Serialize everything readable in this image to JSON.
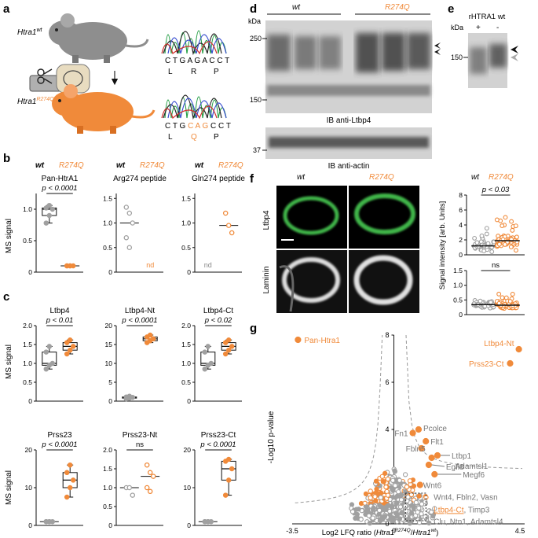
{
  "colors": {
    "orange": "#f08a3a",
    "gray": "#a0a0a0",
    "black": "#111111",
    "green": "#3fb54a"
  },
  "panels": {
    "a": "a",
    "b": "b",
    "c": "c",
    "d": "d",
    "e": "e",
    "f": "f",
    "g": "g"
  },
  "a": {
    "mouse_wt": "Htra1",
    "mouse_wt_sup": "wt",
    "mouse_mut": "Htra1",
    "mouse_mut_sup": "R274Q",
    "seq_wt": "C T G A G A C C T",
    "aa_wt": [
      "L",
      "R",
      "P"
    ],
    "seq_mut_pre": "C T G ",
    "seq_mut_hi": "C A G",
    "seq_mut_post": " C C T",
    "aa_mut": [
      "L",
      "Q",
      "P"
    ]
  },
  "legend": {
    "wt": "wt",
    "mut": "R274Q"
  },
  "b": {
    "ylabel": "MS signal",
    "plots": [
      {
        "title": "Pan-HtrA1",
        "p": "p < 0.0001",
        "ticks": [
          "1.0",
          "0.5",
          "0"
        ]
      },
      {
        "title": "Arg274 peptide",
        "note": "nd",
        "ticks": [
          "1.5",
          "1.0",
          "0.5",
          "0"
        ]
      },
      {
        "title": "Gln274 peptide",
        "note": "nd",
        "ticks": [
          "1.5",
          "1.0",
          "0.5",
          "0"
        ]
      }
    ]
  },
  "c": {
    "ylabel": "MS signal",
    "plots": [
      {
        "title": "Ltbp4",
        "p": "p < 0.01",
        "ticks": [
          "2.0",
          "1.5",
          "1.0",
          "0.5",
          "0"
        ]
      },
      {
        "title": "Ltbp4-Nt",
        "p": "p < 0.0001",
        "ticks": [
          "20",
          "15",
          "10",
          "5",
          "0"
        ]
      },
      {
        "title": "Ltbp4-Ct",
        "p": "p < 0.02",
        "ticks": [
          "2.0",
          "1.5",
          "1.0",
          "0.5",
          "0"
        ]
      },
      {
        "title": "Prss23",
        "p": "p < 0.0001",
        "ticks": [
          "20",
          "10",
          "0"
        ]
      },
      {
        "title": "Prss23-Nt",
        "p": "ns",
        "ticks": [
          "2.0",
          "1.5",
          "1.0",
          "0.5",
          "0"
        ]
      },
      {
        "title": "Prss23-Ct",
        "p": "p < 0.0001",
        "ticks": [
          "20",
          "10",
          "0"
        ]
      }
    ]
  },
  "d": {
    "kda": "kDa",
    "m250": "250",
    "m150": "150",
    "m37": "37",
    "blot1": "IB anti-Ltbp4",
    "blot2": "IB anti-actin"
  },
  "e": {
    "title": "rHTRA1 wt",
    "kda": "kDa",
    "plus": "+",
    "minus": "-",
    "m150": "150"
  },
  "f": {
    "row1": "Ltbp4",
    "row2": "Laminin",
    "p": "p < 0.03",
    "ns": "ns",
    "ylabel": "Signal intensity [arb. Units]",
    "ticks_top": [
      "8",
      "6",
      "4",
      "2",
      "0"
    ],
    "ticks_bot": [
      "1.5",
      "1.0",
      "0.5",
      "0"
    ]
  },
  "g": {
    "ylabel": "-Log10 p-value",
    "xlabel_pre": "Log2 LFQ ratio (",
    "xlabel_num": "Htra1",
    "xlabel_num_sup": "R274Q",
    "xlabel_sep": "/",
    "xlabel_den": "Htra1",
    "xlabel_den_sup": "wt",
    "xlabel_post": ")",
    "xmin": "-3.5",
    "xzero": "0",
    "xmax": "4.5",
    "yticks": [
      "8",
      "6",
      "4",
      "2",
      "0"
    ],
    "labels": {
      "pan": "Pan-Htra1",
      "ltbp4nt": "Ltbp4-Nt",
      "prss23ct": "Prss23-Ct",
      "pcolce": "Pcolce",
      "fn1": "Fn1",
      "flt1": "Flt1",
      "fbln5": "Fbln5",
      "ltbp1": "Ltbp1",
      "adamtsl1": "Adamtsl1",
      "egfl8": "Egfl8",
      "megf6": "Megf6",
      "wnt6": "Wnt6",
      "wnt4": "Wnt4, Fbln2, Vasn",
      "ltbp4ct": "Ltbp4-Ct",
      "timp3": ", Timp3",
      "clu": "Clu, Ntn1, Adamtsl4"
    }
  },
  "chart_data": [
    {
      "type": "box",
      "title": "Pan-HtrA1",
      "ylabel": "MS signal",
      "series": [
        {
          "name": "wt",
          "values": [
            0.78,
            0.9,
            1.0,
            1.02,
            1.06
          ]
        },
        {
          "name": "R274Q",
          "values": [
            0.1,
            0.1,
            0.1,
            0.1,
            0.1
          ]
        }
      ],
      "ylim": [
        0,
        1.25
      ]
    },
    {
      "type": "scatter",
      "title": "Arg274 peptide",
      "series": [
        {
          "name": "wt",
          "values": [
            1.32,
            1.2,
            1.0,
            0.7,
            0.5
          ]
        }
      ],
      "ylim": [
        0,
        1.6
      ]
    },
    {
      "type": "scatter",
      "title": "Gln274 peptide",
      "series": [
        {
          "name": "R274Q",
          "values": [
            1.2,
            0.95,
            0.8
          ]
        }
      ],
      "ylim": [
        0,
        1.6
      ]
    },
    {
      "type": "box",
      "title": "Ltbp4",
      "series": [
        {
          "name": "wt",
          "values": [
            0.85,
            0.95,
            1.0,
            1.3,
            1.45
          ]
        },
        {
          "name": "R274Q",
          "values": [
            1.25,
            1.35,
            1.45,
            1.55,
            1.62
          ]
        }
      ],
      "ylim": [
        0,
        2
      ]
    },
    {
      "type": "box",
      "title": "Ltbp4-Nt",
      "series": [
        {
          "name": "wt",
          "values": [
            0.6,
            0.8,
            1.0,
            1.1,
            1.3
          ]
        },
        {
          "name": "R274Q",
          "values": [
            15.5,
            16.0,
            16.5,
            17.0,
            17.5
          ]
        }
      ],
      "ylim": [
        0,
        20
      ]
    },
    {
      "type": "box",
      "title": "Ltbp4-Ct",
      "series": [
        {
          "name": "wt",
          "values": [
            0.85,
            0.95,
            1.0,
            1.3,
            1.45
          ]
        },
        {
          "name": "R274Q",
          "values": [
            1.25,
            1.35,
            1.45,
            1.55,
            1.62
          ]
        }
      ],
      "ylim": [
        0,
        2
      ]
    },
    {
      "type": "box",
      "title": "Prss23",
      "series": [
        {
          "name": "wt",
          "values": [
            1,
            1,
            1,
            1,
            1
          ]
        },
        {
          "name": "R274Q",
          "values": [
            7.5,
            10,
            12,
            14,
            16
          ]
        }
      ],
      "ylim": [
        0,
        20
      ]
    },
    {
      "type": "scatter",
      "title": "Prss23-Nt",
      "series": [
        {
          "name": "wt",
          "values": [
            1.0,
            1.0,
            0.8
          ]
        },
        {
          "name": "R274Q",
          "values": [
            1.6,
            1.4,
            1.3,
            1.0,
            0.9
          ]
        }
      ],
      "ylim": [
        0,
        2
      ]
    },
    {
      "type": "box",
      "title": "Prss23-Ct",
      "series": [
        {
          "name": "wt",
          "values": [
            1,
            1,
            1,
            1,
            1
          ]
        },
        {
          "name": "R274Q",
          "values": [
            8,
            12,
            15,
            17,
            17.5
          ]
        }
      ],
      "ylim": [
        0,
        20
      ]
    },
    {
      "type": "scatter",
      "title": "Volcano plot",
      "xlabel": "Log2 LFQ ratio (Htra1 R274Q / Htra1 wt)",
      "ylabel": "-Log10 p-value",
      "xlim": [
        -3.5,
        4.5
      ],
      "ylim": [
        0,
        8
      ],
      "points": [
        {
          "label": "Pan-Htra1",
          "x": -3.3,
          "y": 7.8
        },
        {
          "label": "Ltbp4-Nt",
          "x": 4.3,
          "y": 7.4
        },
        {
          "label": "Prss23-Ct",
          "x": 4.0,
          "y": 6.8
        },
        {
          "label": "Pcolce",
          "x": 0.85,
          "y": 4.0
        },
        {
          "label": "Fn1",
          "x": 0.65,
          "y": 3.85
        },
        {
          "label": "Flt1",
          "x": 1.1,
          "y": 3.5
        },
        {
          "label": "Fbln5",
          "x": 0.95,
          "y": 3.2
        },
        {
          "label": "Ltbp1",
          "x": 1.5,
          "y": 2.9
        },
        {
          "label": "Adamtsl1",
          "x": 1.3,
          "y": 2.8
        },
        {
          "label": "Egfl8",
          "x": 1.2,
          "y": 2.5
        },
        {
          "label": "Megf6",
          "x": 1.4,
          "y": 2.1
        },
        {
          "label": "Wnt6",
          "x": 0.9,
          "y": 1.65
        }
      ]
    }
  ]
}
